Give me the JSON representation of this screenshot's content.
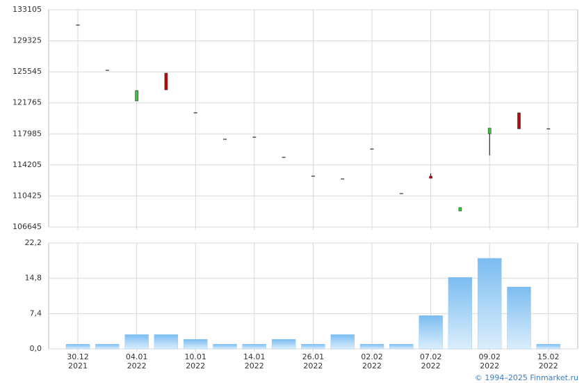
{
  "chart_data": [
    {
      "type": "candlestick",
      "open": [
        131240,
        125730,
        121995,
        125387,
        120553,
        117330,
        117585,
        115125,
        112835,
        112496,
        116143,
        110715,
        112835,
        108595,
        118009,
        120553,
        118600
      ],
      "high": [
        131240,
        125730,
        123267,
        125387,
        120553,
        117330,
        117585,
        115125,
        112835,
        112496,
        116143,
        110715,
        113175,
        109019,
        118687,
        120553,
        118600
      ],
      "low": [
        131240,
        125730,
        121995,
        123352,
        120553,
        117330,
        117585,
        115125,
        112835,
        112496,
        116143,
        110715,
        112580,
        108595,
        115380,
        118602,
        118600
      ],
      "close": [
        131240,
        125730,
        123267,
        123352,
        120553,
        117330,
        117585,
        115125,
        112835,
        112496,
        116143,
        110715,
        112580,
        109019,
        118687,
        118602,
        118600
      ],
      "up_color": "#33cc33",
      "down_color": "#cc0000",
      "ylim": [
        106645,
        133105
      ],
      "yticks": [
        106645,
        110425,
        114205,
        117985,
        121765,
        125545,
        129325,
        133105
      ],
      "grid": true
    },
    {
      "type": "bar",
      "categories": [
        "30.12",
        null,
        "04.01",
        null,
        "10.01",
        null,
        "14.01",
        null,
        "26.01",
        null,
        "02.02",
        null,
        "07.02",
        null,
        "09.02",
        null,
        "15.02"
      ],
      "category_years": [
        "2021",
        null,
        "2022",
        null,
        "2022",
        null,
        "2022",
        null,
        "2022",
        null,
        "2022",
        null,
        "2022",
        null,
        "2022",
        null,
        "2022"
      ],
      "values": [
        1,
        1,
        3,
        3,
        2,
        1,
        1,
        2,
        1,
        3,
        1,
        1,
        7,
        15,
        19,
        13,
        1
      ],
      "color": "#7bbcf0",
      "ylim": [
        0,
        22.2
      ],
      "yticks": [
        {
          "value": 0,
          "label": "0,0"
        },
        {
          "value": 7.4,
          "label": "7,4"
        },
        {
          "value": 14.8,
          "label": "14,8"
        },
        {
          "value": 22.2,
          "label": "22,2"
        }
      ],
      "grid": true
    }
  ],
  "footer": "© 1994–2025 Finmarket.ru"
}
